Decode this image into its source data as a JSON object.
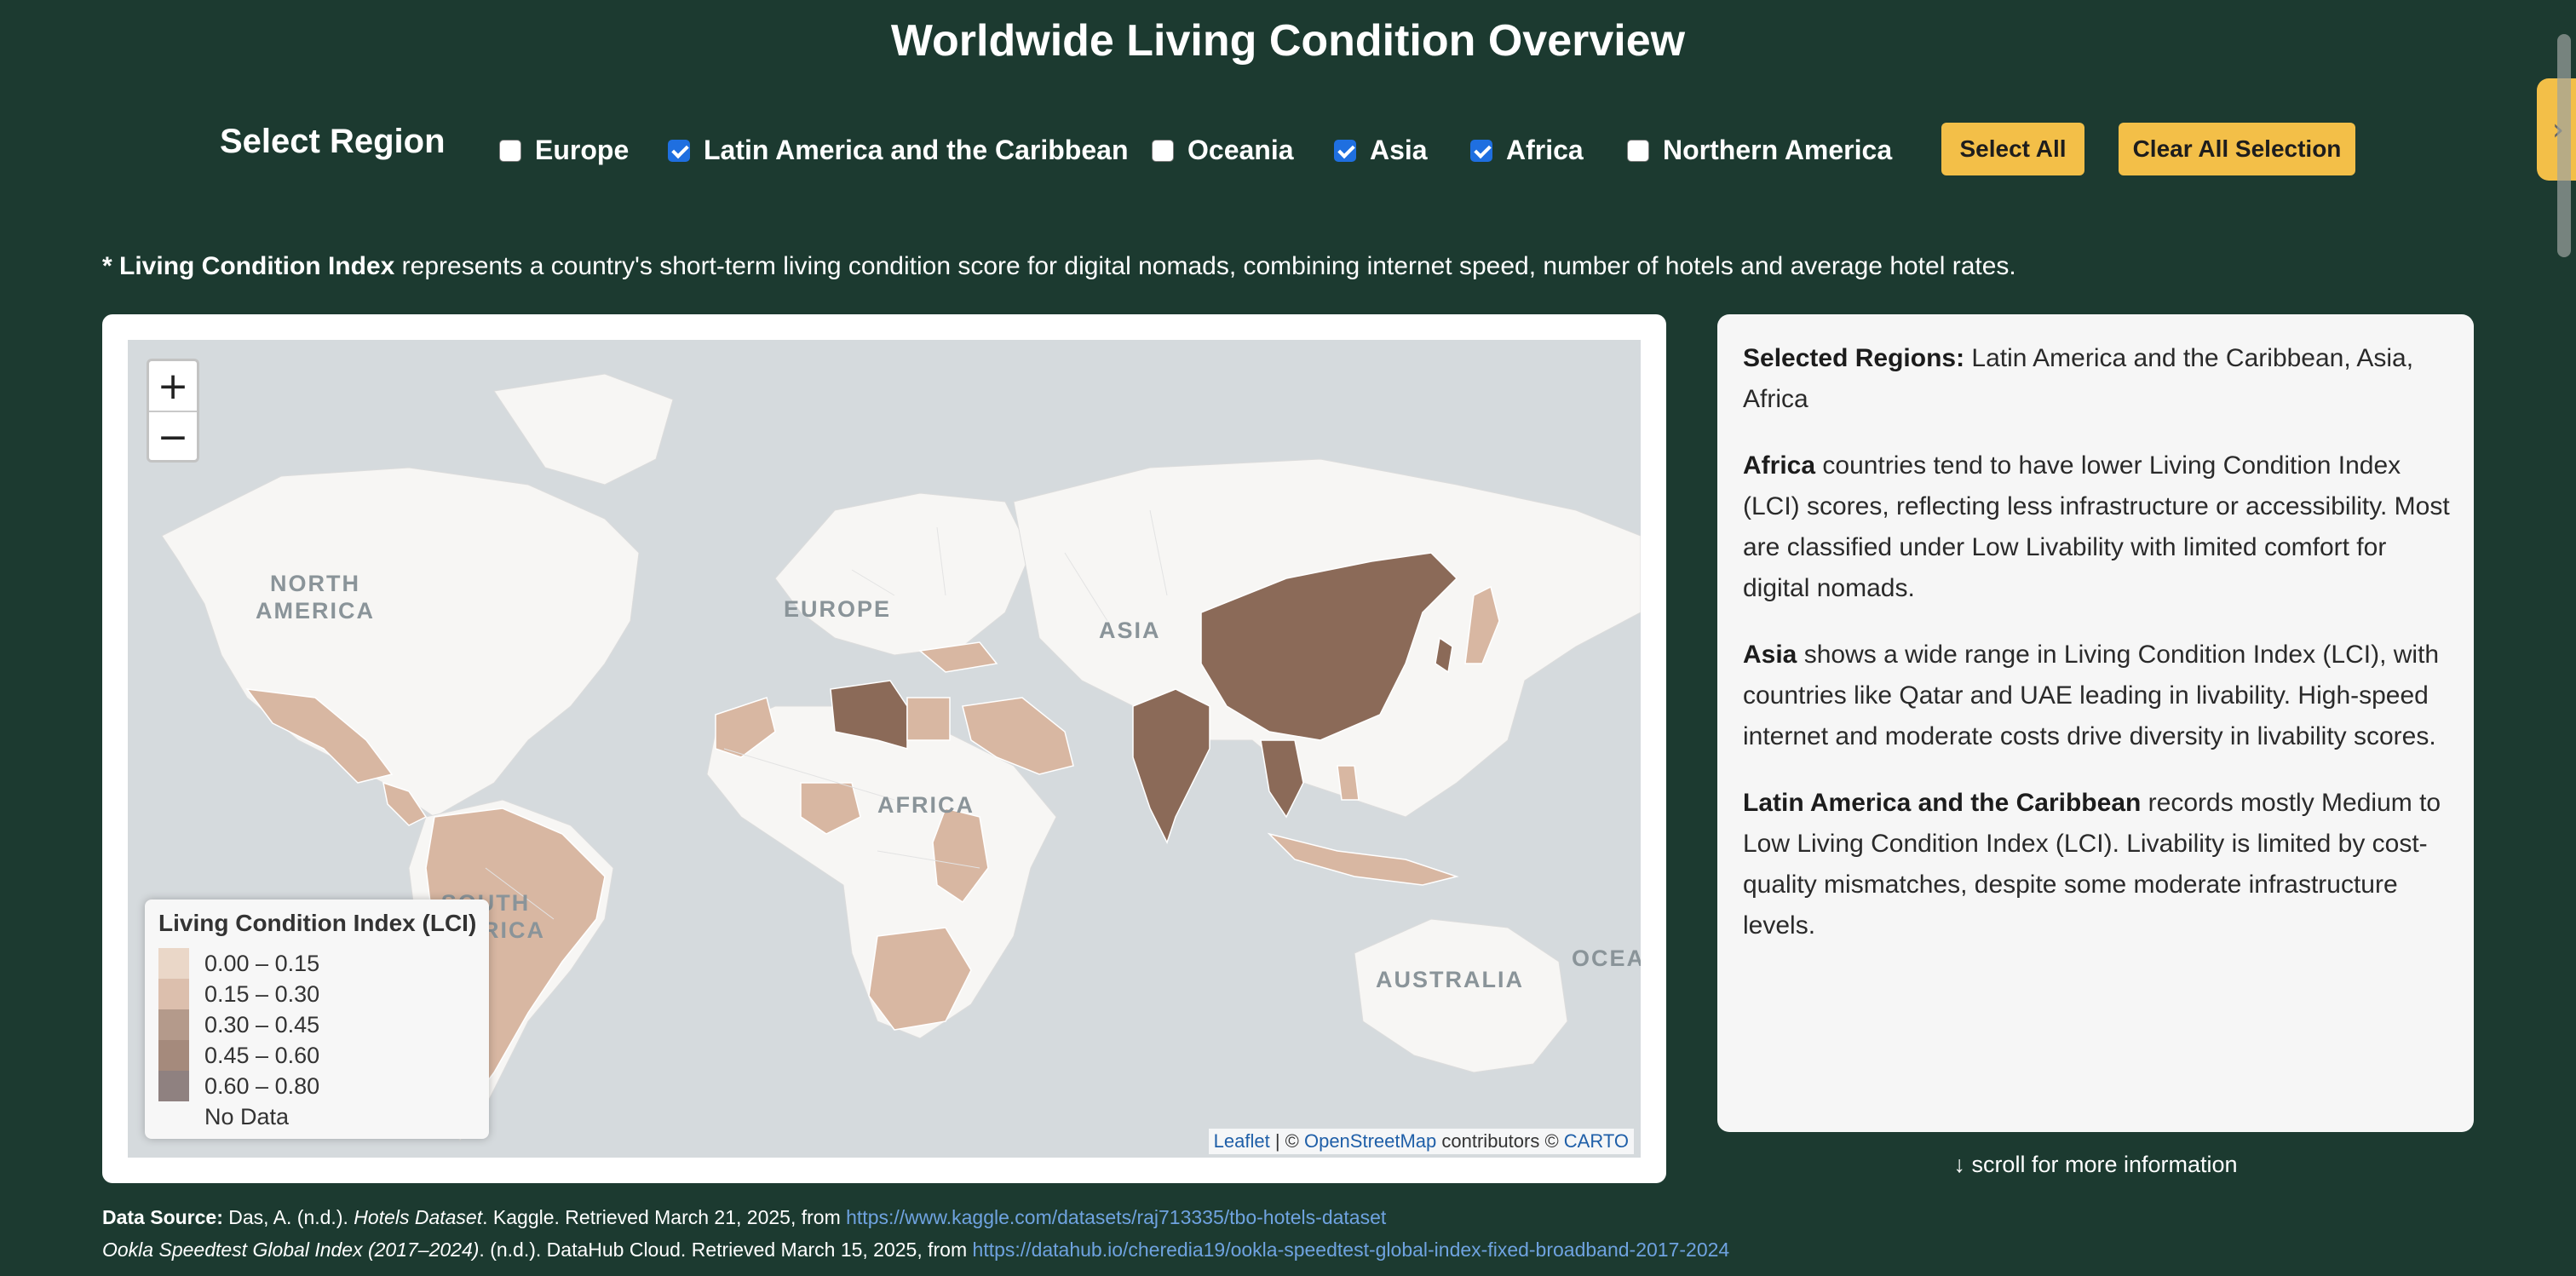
{
  "page": {
    "title": "Worldwide Living Condition Overview"
  },
  "region_selector": {
    "label": "Select Region",
    "options": [
      {
        "label": "Europe",
        "checked": false
      },
      {
        "label": "Latin America and the Caribbean",
        "checked": true
      },
      {
        "label": "Oceania",
        "checked": false
      },
      {
        "label": "Asia",
        "checked": true
      },
      {
        "label": "Africa",
        "checked": true
      },
      {
        "label": "Northern America",
        "checked": false
      }
    ],
    "select_all_label": "Select All",
    "clear_all_label": "Clear All Selection"
  },
  "note": {
    "prefix": "* ",
    "bold": "Living Condition Index",
    "text": " represents a country's short-term living condition score for digital nomads, combining internet speed, number of hotels and average hotel rates."
  },
  "map": {
    "zoom_in": "+",
    "zoom_out": "−",
    "continent_labels": [
      "NORTH\nAMERICA",
      "EUROPE",
      "ASIA",
      "AFRICA",
      "SOUTH\nAMERICA",
      "AUSTRALIA",
      "OCEA"
    ],
    "legend": {
      "title": "Living Condition Index (LCI)",
      "items": [
        {
          "label": "0.00 – 0.15",
          "color": "#ead7c8"
        },
        {
          "label": "0.15 – 0.30",
          "color": "#dcbfad"
        },
        {
          "label": "0.30 – 0.45",
          "color": "#b49a8b"
        },
        {
          "label": "0.45 – 0.60",
          "color": "#a58a7c"
        },
        {
          "label": "0.60 – 0.80",
          "color": "#8f8180"
        },
        {
          "label": "No Data",
          "color": "#ffffff"
        }
      ]
    },
    "attribution": {
      "leaflet": "Leaflet",
      "sep1": " | © ",
      "osm": "OpenStreetMap",
      "mid": " contributors © ",
      "carto": "CARTO"
    }
  },
  "info_panel": {
    "selected_label": "Selected Regions:",
    "selected_value": " Latin America and the Caribbean, Asia, Africa",
    "paragraphs": [
      {
        "bold": "Africa",
        "text": " countries tend to have lower Living Condition Index (LCI) scores, reflecting less infrastructure or accessibility. Most are classified under Low Livability with limited comfort for digital nomads."
      },
      {
        "bold": "Asia",
        "text": " shows a wide range in Living Condition Index (LCI), with countries like Qatar and UAE leading in livability. High-speed internet and moderate costs drive diversity in livability scores."
      },
      {
        "bold": "Latin America and the Caribbean",
        "text": " records mostly Medium to Low Living Condition Index (LCI). Livability is limited by cost-quality mismatches, despite some moderate infrastructure levels."
      }
    ]
  },
  "scroll_hint": "↓ scroll for more information",
  "sources": [
    {
      "label": "Data Source:",
      "text_before": " Das, A. (n.d.). ",
      "title": "Hotels Dataset",
      "text_after": ". Kaggle. Retrieved March 21, 2025, from ",
      "link": "https://www.kaggle.com/datasets/raj713335/tbo-hotels-dataset"
    },
    {
      "label": "",
      "text_before": "",
      "title": "Ookla Speedtest Global Index (2017–2024)",
      "text_after": ". (n.d.). DataHub Cloud. Retrieved March 15, 2025, from ",
      "link": "https://datahub.io/cheredia19/ookla-speedtest-global-index-fixed-broadband-2017-2024"
    }
  ],
  "side_tab_icon": "chevron-right-icon",
  "colors": {
    "background": "#1c3a30",
    "accent": "#f3bf48",
    "checkbox": "#1f6fe0"
  }
}
